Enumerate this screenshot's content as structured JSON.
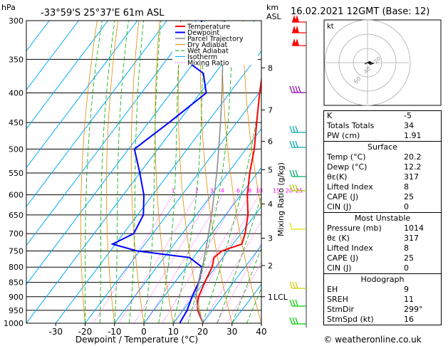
{
  "header": {
    "pressure_unit": "hPa",
    "location": "-33°59'S  25°37'E  61m  ASL",
    "height_unit": "km",
    "height_unit2": "ASL",
    "datetime": "16.02.2021  12GMT  (Base: 12)"
  },
  "chart_data": {
    "type": "line",
    "xlabel": "Dewpoint / Temperature (°C)",
    "ylabel": "",
    "right_label": "Mixing Ratio (g/kg)",
    "x_ticks": [
      -30,
      -20,
      -10,
      0,
      10,
      20,
      30,
      40
    ],
    "xlim": [
      -40,
      40
    ],
    "ylim_hpa": [
      1000,
      300
    ],
    "pressure_ticks": [
      300,
      350,
      400,
      450,
      500,
      550,
      600,
      650,
      700,
      750,
      800,
      850,
      900,
      950,
      1000
    ],
    "km_ticks": [
      {
        "km": "8",
        "p": 362
      },
      {
        "km": "7",
        "p": 428
      },
      {
        "km": "6",
        "p": 485
      },
      {
        "km": "5",
        "p": 543
      },
      {
        "km": "4",
        "p": 622
      },
      {
        "km": "3",
        "p": 713
      },
      {
        "km": "2",
        "p": 795
      },
      {
        "km": "1",
        "p": 900
      }
    ],
    "lcl_label": "LCL",
    "lcl_p": 900,
    "mixing_ratio_labels": [
      "1",
      "2",
      "3",
      "4",
      "6",
      "8",
      "10",
      "15",
      "20",
      "25"
    ],
    "legend": [
      "Temperature",
      "Dewpoint",
      "Parcel Trajectory",
      "Dry Adiabat",
      "Wet Adiabat",
      "Isotherm",
      "Mixing Ratio"
    ],
    "series": [
      {
        "name": "Temperature",
        "color": "#ff0000",
        "points": [
          [
            1000,
            20.2
          ],
          [
            975,
            17.6
          ],
          [
            950,
            15.0
          ],
          [
            925,
            13.2
          ],
          [
            900,
            11.8
          ],
          [
            850,
            10.2
          ],
          [
            800,
            8.8
          ],
          [
            770,
            7.0
          ],
          [
            750,
            8.0
          ],
          [
            730,
            13.0
          ],
          [
            700,
            11.4
          ],
          [
            650,
            7.6
          ],
          [
            600,
            2.2
          ],
          [
            550,
            -2.6
          ],
          [
            500,
            -7.2
          ],
          [
            450,
            -13.2
          ],
          [
            400,
            -19.8
          ],
          [
            350,
            -26.8
          ],
          [
            300,
            -33.5
          ]
        ]
      },
      {
        "name": "Dewpoint",
        "color": "#0000ff",
        "points": [
          [
            1000,
            12.2
          ],
          [
            950,
            11.4
          ],
          [
            900,
            9.6
          ],
          [
            850,
            8.2
          ],
          [
            800,
            5.4
          ],
          [
            770,
            -1.4
          ],
          [
            750,
            -21.0
          ],
          [
            730,
            -31.0
          ],
          [
            700,
            -26.5
          ],
          [
            650,
            -28.0
          ],
          [
            600,
            -33.0
          ],
          [
            550,
            -40.0
          ],
          [
            500,
            -48.0
          ],
          [
            450,
            -43.0
          ],
          [
            400,
            -38.0
          ],
          [
            370,
            -44.0
          ],
          [
            350,
            -54.0
          ],
          [
            300,
            -58.0
          ]
        ]
      },
      {
        "name": "Parcel Trajectory",
        "color": "#888888",
        "points": [
          [
            1000,
            20.2
          ],
          [
            950,
            15.3
          ],
          [
            900,
            10.8
          ],
          [
            850,
            8.2
          ],
          [
            800,
            5.5
          ],
          [
            750,
            2.4
          ],
          [
            700,
            -1.0
          ],
          [
            650,
            -4.8
          ],
          [
            600,
            -9.1
          ],
          [
            550,
            -13.8
          ],
          [
            500,
            -19.3
          ],
          [
            450,
            -25.5
          ],
          [
            400,
            -32.6
          ],
          [
            350,
            -41.0
          ],
          [
            300,
            -50.5
          ]
        ]
      }
    ]
  },
  "hodograph": {
    "unit": "kt",
    "ring_labels": [
      "20",
      "40",
      "60"
    ]
  },
  "indices": {
    "rows": [
      {
        "label": "K",
        "value": "-5"
      },
      {
        "label": "Totals Totals",
        "value": "34"
      },
      {
        "label": "PW (cm)",
        "value": "1.91"
      }
    ],
    "surface": {
      "title": "Surface",
      "rows": [
        {
          "label": "Temp (°C)",
          "value": "20.2"
        },
        {
          "label": "Dewp (°C)",
          "value": "12.2"
        },
        {
          "label": "θε(K)",
          "value": "317"
        },
        {
          "label": "Lifted Index",
          "value": "8"
        },
        {
          "label": "CAPE (J)",
          "value": "25"
        },
        {
          "label": "CIN (J)",
          "value": "0"
        }
      ]
    },
    "most_unstable": {
      "title": "Most Unstable",
      "rows": [
        {
          "label": "Pressure (mb)",
          "value": "1014"
        },
        {
          "label": "θε (K)",
          "value": "317"
        },
        {
          "label": "Lifted Index",
          "value": "8"
        },
        {
          "label": "CAPE (J)",
          "value": "25"
        },
        {
          "label": "CIN (J)",
          "value": "0"
        }
      ]
    },
    "hodograph_tbl": {
      "title": "Hodograph",
      "rows": [
        {
          "label": "EH",
          "value": "9"
        },
        {
          "label": "SREH",
          "value": "11"
        },
        {
          "label": "StmDir",
          "value": "299°"
        },
        {
          "label": "StmSpd (kt)",
          "value": "16"
        }
      ]
    }
  },
  "footer": {
    "copyright": "© weatheronline.co.uk"
  },
  "colors": {
    "temperature": "#ff0000",
    "dewpoint": "#0000ff",
    "parcel": "#888888",
    "dry_adiabat": "#e08a00",
    "wet_adiabat": "#00aa00",
    "isotherm": "#00aaff",
    "mixing_ratio": "#ff00ff"
  }
}
